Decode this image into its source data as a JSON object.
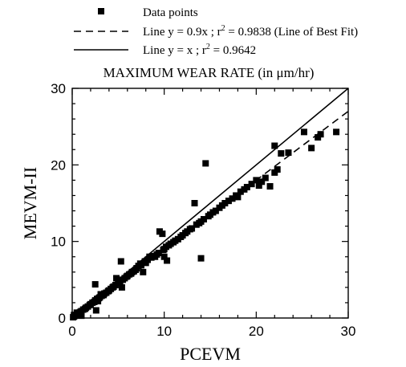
{
  "chart_data": {
    "type": "scatter",
    "title": "MAXIMUM WEAR RATE (in μm/hr)",
    "xlabel": "PCEVM",
    "ylabel": "MEVM-II",
    "xlim": [
      0,
      30
    ],
    "ylim": [
      0,
      30
    ],
    "xticks": [
      "0",
      "10",
      "20",
      "30"
    ],
    "yticks": [
      "0",
      "10",
      "20",
      "30"
    ],
    "grid": false,
    "legend_position": "top",
    "legend": {
      "points": "Data points",
      "fit": "Line y = 0.9x ; r",
      "fit_tail": " = 0.9838  (Line of Best Fit)",
      "identity": "Line y = x ; r",
      "identity_tail": " = 0.9642",
      "superscript": "2"
    },
    "lines": [
      {
        "name": "Line y = 0.9x",
        "slope": 0.9,
        "style": "dashed",
        "color": "#000000"
      },
      {
        "name": "Line y = x",
        "slope": 1.0,
        "style": "solid",
        "color": "#000000"
      }
    ],
    "series": [
      {
        "name": "Data points",
        "marker": "square",
        "color": "#000000",
        "points": [
          [
            0.1,
            0.1
          ],
          [
            0.2,
            0.2
          ],
          [
            0.3,
            0.3
          ],
          [
            0.4,
            0.35
          ],
          [
            0.5,
            0.45
          ],
          [
            0.6,
            0.55
          ],
          [
            0.7,
            0.6
          ],
          [
            0.8,
            0.7
          ],
          [
            0.9,
            0.8
          ],
          [
            1.0,
            0.9
          ],
          [
            0.2,
            0.4
          ],
          [
            0.5,
            0.7
          ],
          [
            1.0,
            0.3
          ],
          [
            1.2,
            1.1
          ],
          [
            1.4,
            1.2
          ],
          [
            1.5,
            1.35
          ],
          [
            1.7,
            1.5
          ],
          [
            1.9,
            1.7
          ],
          [
            2.0,
            1.8
          ],
          [
            2.2,
            2.0
          ],
          [
            2.4,
            2.1
          ],
          [
            2.5,
            2.3
          ],
          [
            2.7,
            2.5
          ],
          [
            2.9,
            2.6
          ],
          [
            3.0,
            2.7
          ],
          [
            3.2,
            2.9
          ],
          [
            3.4,
            3.0
          ],
          [
            3.5,
            3.2
          ],
          [
            3.7,
            3.3
          ],
          [
            3.9,
            3.5
          ],
          [
            2.5,
            4.4
          ],
          [
            2.6,
            1.0
          ],
          [
            2.8,
            2.2
          ],
          [
            3.1,
            3.1
          ],
          [
            4.0,
            3.6
          ],
          [
            4.2,
            3.8
          ],
          [
            4.4,
            4.0
          ],
          [
            4.5,
            4.1
          ],
          [
            4.7,
            4.3
          ],
          [
            4.8,
            5.2
          ],
          [
            5.0,
            4.5
          ],
          [
            5.2,
            4.7
          ],
          [
            5.3,
            7.4
          ],
          [
            5.5,
            5.0
          ],
          [
            5.4,
            4.0
          ],
          [
            5.7,
            5.2
          ],
          [
            5.9,
            5.4
          ],
          [
            6.0,
            5.5
          ],
          [
            6.2,
            5.7
          ],
          [
            6.4,
            5.8
          ],
          [
            6.5,
            6.0
          ],
          [
            6.7,
            6.1
          ],
          [
            6.9,
            6.3
          ],
          [
            7.0,
            6.5
          ],
          [
            7.2,
            6.8
          ],
          [
            7.4,
            7.1
          ],
          [
            7.5,
            6.9
          ],
          [
            7.7,
            6.0
          ],
          [
            7.9,
            7.4
          ],
          [
            8.0,
            7.2
          ],
          [
            8.2,
            7.6
          ],
          [
            8.4,
            8.0
          ],
          [
            8.6,
            7.9
          ],
          [
            8.8,
            8.1
          ],
          [
            9.0,
            8.0
          ],
          [
            9.2,
            8.3
          ],
          [
            9.4,
            8.5
          ],
          [
            9.5,
            11.3
          ],
          [
            9.8,
            11.0
          ],
          [
            9.9,
            8.9
          ],
          [
            10.0,
            8.0
          ],
          [
            10.0,
            9.0
          ],
          [
            10.2,
            9.3
          ],
          [
            10.3,
            7.5
          ],
          [
            10.5,
            9.5
          ],
          [
            10.7,
            9.7
          ],
          [
            11.0,
            9.9
          ],
          [
            11.2,
            10.1
          ],
          [
            11.5,
            10.3
          ],
          [
            11.8,
            10.6
          ],
          [
            12.0,
            10.8
          ],
          [
            12.3,
            11.1
          ],
          [
            12.5,
            11.3
          ],
          [
            12.8,
            11.6
          ],
          [
            13.0,
            11.7
          ],
          [
            13.3,
            15.0
          ],
          [
            13.5,
            12.2
          ],
          [
            13.8,
            12.4
          ],
          [
            14.0,
            12.6
          ],
          [
            14.0,
            7.8
          ],
          [
            14.3,
            12.9
          ],
          [
            14.5,
            20.2
          ],
          [
            14.8,
            13.3
          ],
          [
            15.0,
            13.5
          ],
          [
            15.3,
            13.8
          ],
          [
            15.6,
            14.0
          ],
          [
            16.0,
            14.4
          ],
          [
            16.3,
            14.7
          ],
          [
            16.6,
            15.0
          ],
          [
            17.0,
            15.3
          ],
          [
            17.4,
            15.6
          ],
          [
            17.8,
            16.0
          ],
          [
            18.0,
            15.8
          ],
          [
            18.3,
            16.5
          ],
          [
            18.7,
            16.8
          ],
          [
            19.0,
            17.1
          ],
          [
            19.5,
            17.5
          ],
          [
            20.0,
            18.0
          ],
          [
            20.3,
            17.3
          ],
          [
            20.6,
            17.8
          ],
          [
            21.0,
            18.3
          ],
          [
            21.5,
            17.2
          ],
          [
            22.0,
            19.0
          ],
          [
            22.0,
            22.5
          ],
          [
            22.3,
            19.4
          ],
          [
            22.7,
            21.5
          ],
          [
            23.5,
            21.6
          ],
          [
            25.2,
            24.3
          ],
          [
            26.0,
            22.2
          ],
          [
            26.7,
            23.6
          ],
          [
            27.0,
            24.0
          ],
          [
            28.7,
            24.3
          ]
        ]
      }
    ]
  }
}
